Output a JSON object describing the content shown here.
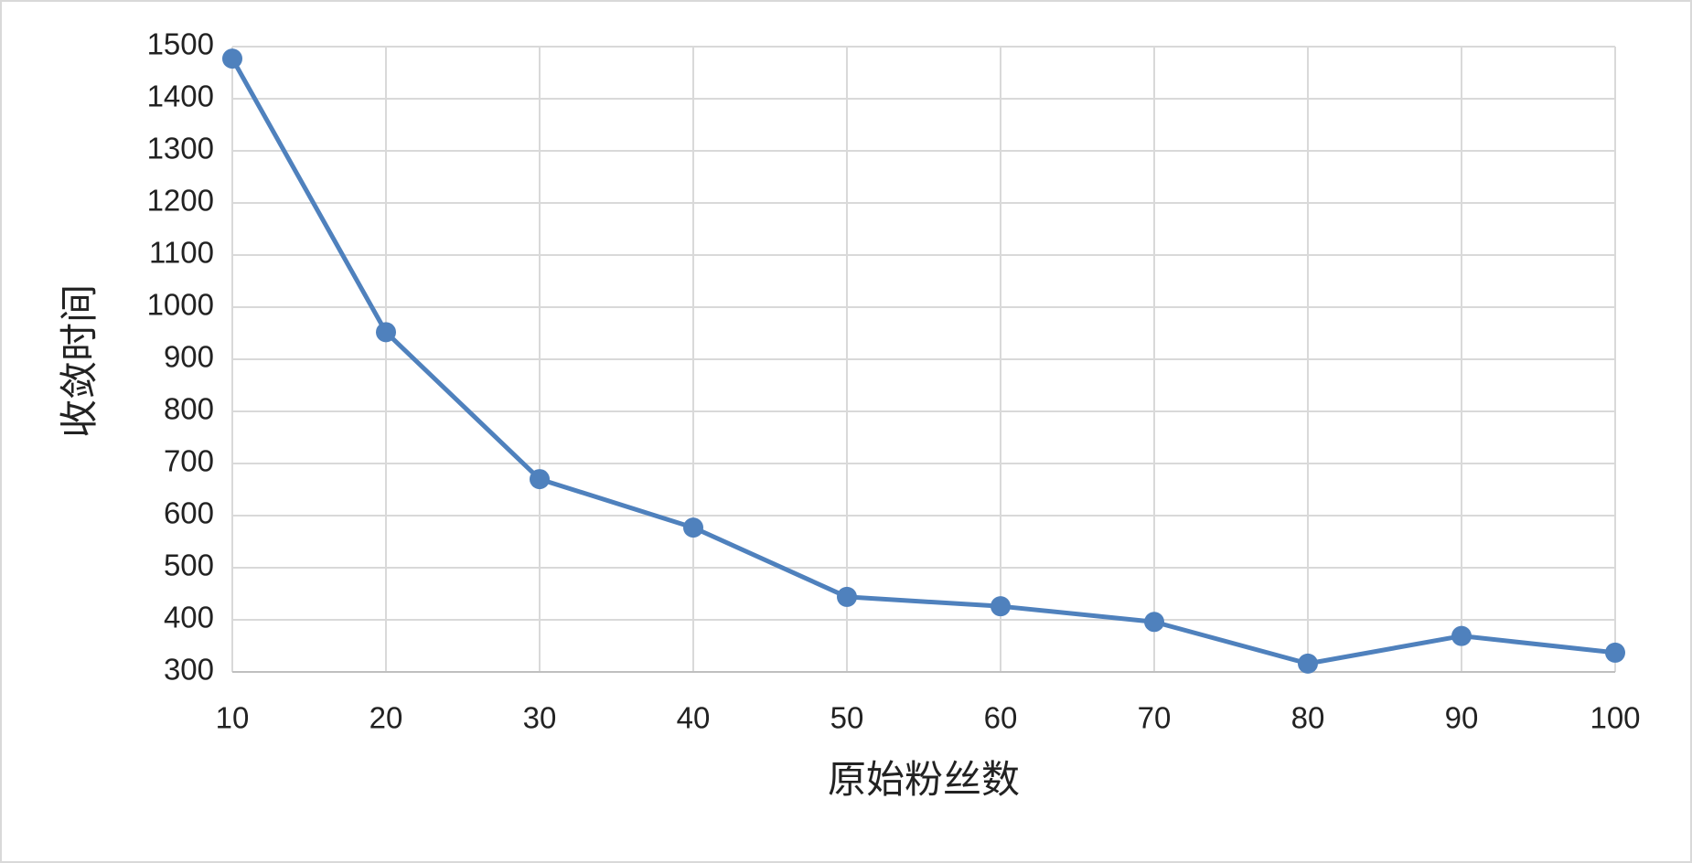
{
  "chart_data": {
    "type": "line",
    "x_label": "原始粉丝数",
    "y_label": "收敛时间",
    "x": [
      10,
      20,
      30,
      40,
      50,
      60,
      70,
      80,
      90,
      100
    ],
    "values": [
      1477,
      952,
      670,
      577,
      444,
      426,
      396,
      316,
      369,
      337
    ],
    "color": "#4f81bd",
    "xlim": [
      10,
      100
    ],
    "xticks": [
      10,
      20,
      30,
      40,
      50,
      60,
      70,
      80,
      90,
      100
    ],
    "ylim": [
      300,
      1500
    ],
    "yticks": [
      300,
      400,
      500,
      600,
      700,
      800,
      900,
      1000,
      1100,
      1200,
      1300,
      1400,
      1500
    ],
    "grid": true
  }
}
